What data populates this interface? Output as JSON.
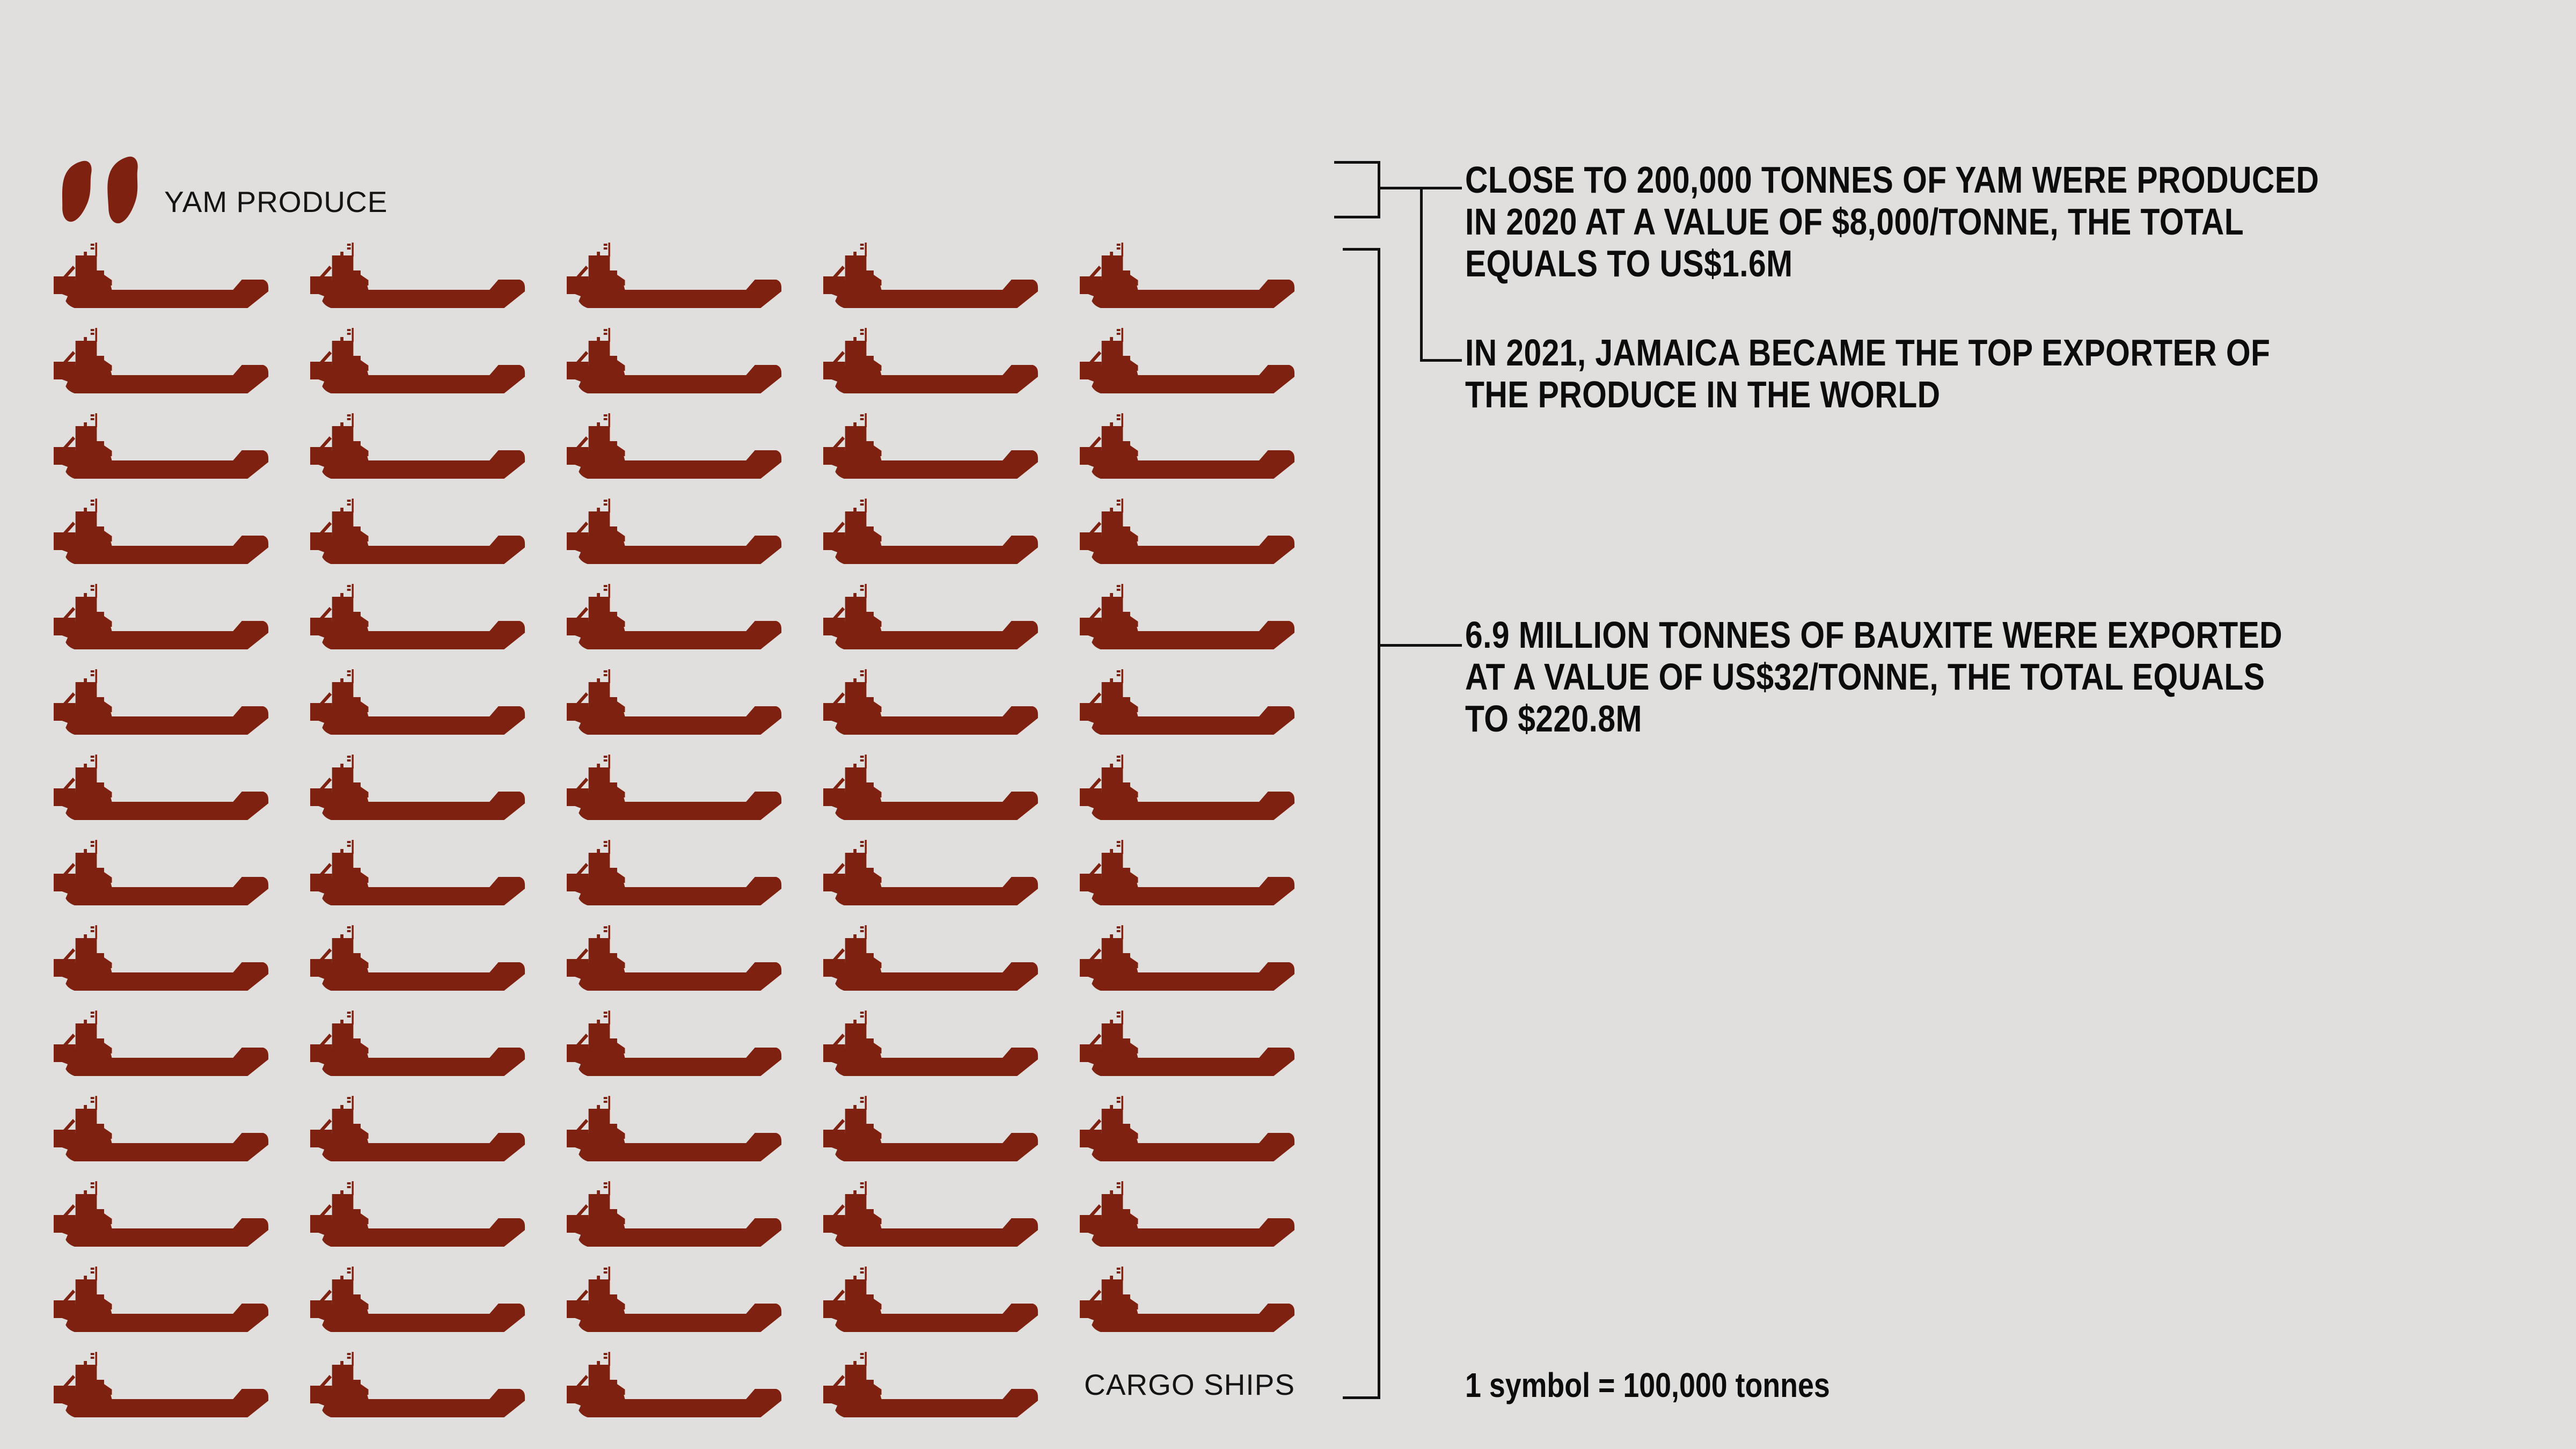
{
  "canvas": {
    "background": "#e1dfdd"
  },
  "colors": {
    "accent": "#7f2110",
    "text": "#0c0c0c",
    "line": "#111111"
  },
  "yam_section": {
    "label": "YAM PRODUCE",
    "icon": "yam-icon",
    "symbol_count": 2
  },
  "ships_section": {
    "label": "CARGO SHIPS",
    "icon": "cargo-ship-icon",
    "symbol_count": 69,
    "columns": 5
  },
  "annotations": [
    {
      "id": "yam-2020",
      "lines": [
        "CLOSE TO 200,000 TONNES OF YAM WERE PRODUCED",
        "IN 2020 AT A VALUE OF $8,000/TONNE, THE TOTAL",
        "EQUALS TO US$1.6M"
      ]
    },
    {
      "id": "yam-2021",
      "lines": [
        "IN 2021, JAMAICA BECAME THE TOP EXPORTER OF",
        "THE PRODUCE IN THE WORLD"
      ]
    },
    {
      "id": "bauxite",
      "lines": [
        "6.9 MILLION TONNES OF BAUXITE WERE EXPORTED",
        "AT A VALUE  OF US$32/TONNE, THE TOTAL EQUALS",
        "TO $220.8M"
      ]
    }
  ],
  "legend": {
    "text": "1 symbol = 100,000 tonnes"
  },
  "chart_data": {
    "type": "bar",
    "variant": "isotype-pictogram",
    "unit_per_symbol": 100000,
    "unit": "tonnes",
    "legend": "1 symbol = 100,000 tonnes",
    "categories": [
      "YAM PRODUCE",
      "CARGO SHIPS"
    ],
    "values": [
      200000,
      6900000
    ],
    "series": [
      {
        "name": "YAM PRODUCE",
        "symbol": "yam",
        "symbol_count": 2,
        "value_tonnes": 200000,
        "note": "CLOSE TO 200,000 TONNES OF YAM WERE PRODUCED IN 2020 AT A VALUE OF $8,000/TONNE, THE TOTAL EQUALS TO US$1.6M"
      },
      {
        "name": "CARGO SHIPS",
        "symbol": "cargo-ship",
        "symbol_count": 69,
        "value_tonnes": 6900000,
        "note": "6.9 MILLION TONNES OF BAUXITE WERE EXPORTED AT A VALUE OF US$32/TONNE, THE TOTAL EQUALS TO $220.8M"
      }
    ],
    "extra_annotation": "IN 2021, JAMAICA BECAME THE TOP EXPORTER OF THE PRODUCE IN THE WORLD"
  }
}
